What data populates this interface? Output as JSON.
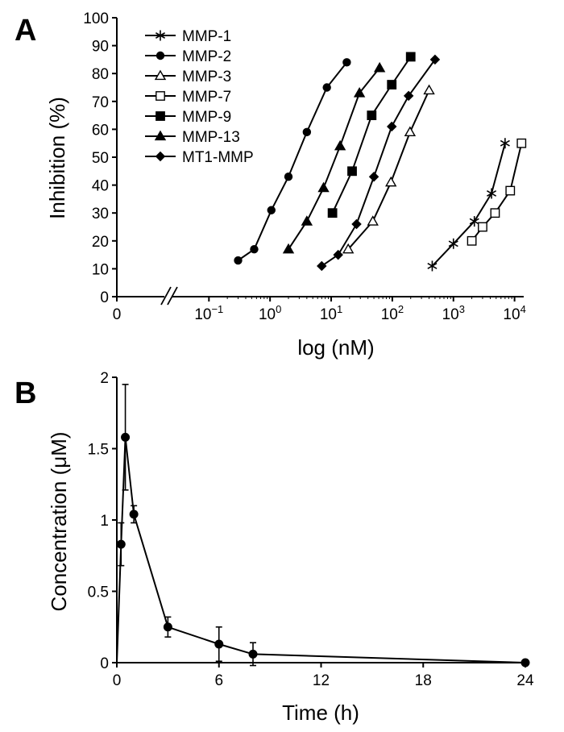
{
  "panels": [
    {
      "letter": "A",
      "chart_data": {
        "type": "line",
        "xlabel": "log (nM)",
        "ylabel": "Inhibition (%)",
        "xscale": "log",
        "x_ticks": [
          {
            "value": 0,
            "label": "0",
            "label_sup": ""
          },
          {
            "value": 0.1,
            "label": "10",
            "label_sup": "−1"
          },
          {
            "value": 1,
            "label": "10",
            "label_sup": "0"
          },
          {
            "value": 10,
            "label": "10",
            "label_sup": "1"
          },
          {
            "value": 100,
            "label": "10",
            "label_sup": "2"
          },
          {
            "value": 1000,
            "label": "10",
            "label_sup": "3"
          },
          {
            "value": 10000,
            "label": "10",
            "label_sup": "4"
          }
        ],
        "x_axis_break": true,
        "ylim": [
          0,
          100
        ],
        "y_ticks": [
          0,
          10,
          20,
          30,
          40,
          50,
          60,
          70,
          80,
          90,
          100
        ],
        "legend_position": "top-left",
        "grid": false,
        "series": [
          {
            "name": "MMP-1",
            "marker": "asterisk",
            "x": [
              450,
              1000,
              2200,
              4200,
              7000
            ],
            "y": [
              11,
              19,
              27,
              37,
              55
            ]
          },
          {
            "name": "MMP-2",
            "marker": "filled-circle",
            "x": [
              0.3,
              0.55,
              1.05,
              2.0,
              4.0,
              8.5,
              18
            ],
            "y": [
              13,
              17,
              31,
              43,
              59,
              75,
              84
            ]
          },
          {
            "name": "MMP-3",
            "marker": "open-triangle",
            "x": [
              19,
              48,
              95,
              195,
              400
            ],
            "y": [
              17,
              27,
              41,
              59,
              74
            ]
          },
          {
            "name": "MMP-7",
            "marker": "open-square",
            "x": [
              2000,
              3000,
              4800,
              8500,
              13000
            ],
            "y": [
              20,
              25,
              30,
              38,
              55
            ]
          },
          {
            "name": "MMP-9",
            "marker": "filled-square",
            "x": [
              10.5,
              22,
              46,
              98,
              200
            ],
            "y": [
              30,
              45,
              65,
              76,
              86
            ]
          },
          {
            "name": "MMP-13",
            "marker": "filled-triangle",
            "x": [
              2.0,
              4.0,
              7.5,
              14,
              29,
              62
            ],
            "y": [
              17,
              27,
              39,
              54,
              73,
              82
            ]
          },
          {
            "name": "MT1-MMP",
            "marker": "filled-diamond",
            "x": [
              7,
              13,
              26,
              50,
              98,
              185,
              500
            ],
            "y": [
              11,
              15,
              26,
              43,
              61,
              72,
              85
            ]
          }
        ]
      }
    },
    {
      "letter": "B",
      "chart_data": {
        "type": "line",
        "xlabel": "Time (h)",
        "ylabel": "Concentration (μM)",
        "xlim": [
          0,
          24
        ],
        "x_ticks": [
          0,
          6,
          12,
          18,
          24
        ],
        "ylim": [
          0,
          2
        ],
        "y_ticks": [
          0,
          0.5,
          1,
          1.5,
          2
        ],
        "y_tick_labels": [
          "0",
          "0.5",
          "1",
          "1.5",
          "2"
        ],
        "grid": false,
        "series": [
          {
            "name": "",
            "marker": "filled-circle",
            "x": [
              0,
              0.25,
              0.5,
              1,
              3,
              6,
              8,
              24
            ],
            "y": [
              0,
              0.83,
              1.58,
              1.04,
              0.25,
              0.13,
              0.06,
              0.0
            ],
            "error": [
              0,
              0.15,
              0.37,
              0.06,
              0.07,
              0.12,
              0.08,
              0
            ]
          }
        ]
      }
    }
  ]
}
